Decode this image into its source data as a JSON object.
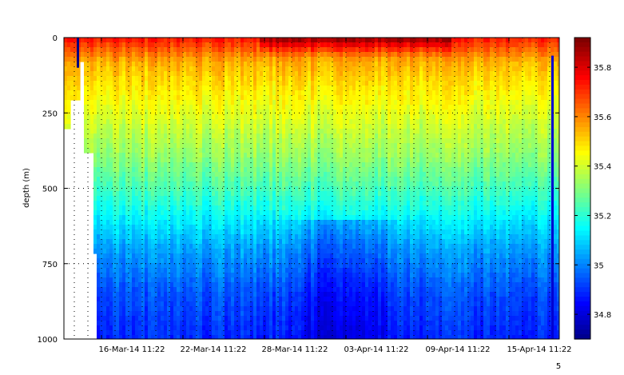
{
  "chart_data": {
    "type": "heatmap",
    "title": "",
    "xlabel": "",
    "ylabel": "depth (m)",
    "y_ticks": [
      "0",
      "250",
      "500",
      "750",
      "1000"
    ],
    "y_range": [
      0,
      1000
    ],
    "y_reversed": true,
    "x_ticks": [
      "16-Mar-14 11:22",
      "22-Mar-14 11:22",
      "28-Mar-14 11:22",
      "03-Apr-14 11:22",
      "09-Apr-14 11:22",
      "15-Apr-14 11:22"
    ],
    "x_offset_label": "5",
    "colorbar": {
      "ticks": [
        "35.8",
        "35.6",
        "35.4",
        "35.2",
        "35",
        "34.8"
      ],
      "range": [
        34.7,
        35.92
      ],
      "colormap": "jet"
    },
    "grid": true,
    "grid_style": "dotted",
    "profile": [
      {
        "depth": 0,
        "value": 35.75
      },
      {
        "depth": 30,
        "value": 35.68
      },
      {
        "depth": 80,
        "value": 35.56
      },
      {
        "depth": 150,
        "value": 35.5
      },
      {
        "depth": 250,
        "value": 35.43
      },
      {
        "depth": 400,
        "value": 35.33
      },
      {
        "depth": 550,
        "value": 35.2
      },
      {
        "depth": 700,
        "value": 35.05
      },
      {
        "depth": 850,
        "value": 34.95
      },
      {
        "depth": 1000,
        "value": 34.9
      }
    ]
  }
}
